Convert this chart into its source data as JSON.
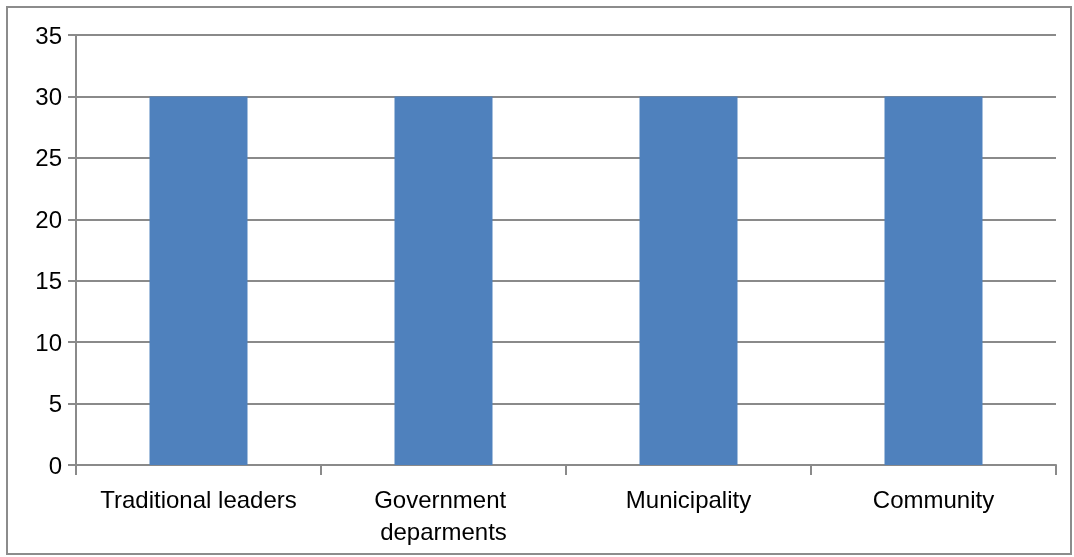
{
  "chart_data": {
    "type": "bar",
    "categories": [
      "Traditional leaders",
      "Government deparments",
      "Municipality",
      "Community"
    ],
    "values": [
      30,
      30,
      30,
      30
    ],
    "color": "#4f81bd",
    "ylim": [
      0,
      35
    ],
    "yticks": [
      0,
      5,
      10,
      15,
      20,
      25,
      30,
      35
    ],
    "grid": "y"
  }
}
